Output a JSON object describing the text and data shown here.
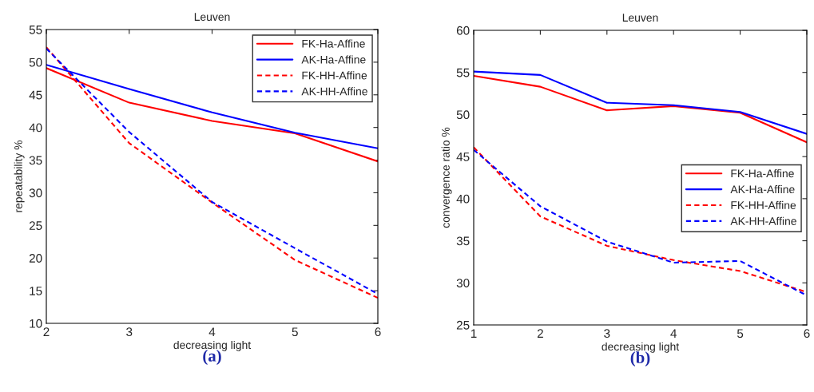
{
  "chart_data": [
    {
      "type": "line",
      "title": "Leuven",
      "xlabel": "decreasing light",
      "ylabel": "repeatability %",
      "annotations": [
        "(a)"
      ],
      "x": [
        2,
        3,
        4,
        5,
        6
      ],
      "xlim": [
        2,
        6
      ],
      "xticks": [
        2,
        3,
        4,
        5,
        6
      ],
      "ylim": [
        10,
        55
      ],
      "yticks": [
        10,
        15,
        20,
        25,
        30,
        35,
        40,
        45,
        50,
        55
      ],
      "grid": false,
      "legend": "top right",
      "marker": "none",
      "series": [
        {
          "name": "FK-Ha-Affine",
          "color": "#ff0000",
          "line_style": "solid",
          "values": [
            49.1,
            43.8,
            41.0,
            39.1,
            34.8
          ]
        },
        {
          "name": "AK-Ha-Affine",
          "color": "#0000ff",
          "line_style": "solid",
          "values": [
            49.6,
            45.9,
            42.3,
            39.2,
            36.8
          ]
        },
        {
          "name": "FK-HH-Affine",
          "color": "#ff0000",
          "line_style": "dashed",
          "values": [
            52.3,
            37.6,
            28.5,
            19.7,
            13.9
          ]
        },
        {
          "name": "AK-HH-Affine",
          "color": "#0000ff",
          "line_style": "dashed",
          "values": [
            52.1,
            39.3,
            28.6,
            21.5,
            14.5
          ]
        }
      ]
    },
    {
      "type": "line",
      "title": "Leuven",
      "xlabel": "decreasing light",
      "ylabel": "convergence ratio %",
      "annotations": [
        "(b)"
      ],
      "x": [
        1,
        2,
        3,
        4,
        5,
        6
      ],
      "xlim": [
        1,
        6
      ],
      "xticks": [
        1,
        2,
        3,
        4,
        5,
        6
      ],
      "ylim": [
        25,
        60
      ],
      "yticks": [
        25,
        30,
        35,
        40,
        45,
        50,
        55,
        60
      ],
      "grid": false,
      "legend": "right",
      "marker": "none",
      "series": [
        {
          "name": "FK-Ha-Affine",
          "color": "#ff0000",
          "line_style": "solid",
          "values": [
            54.6,
            53.3,
            50.5,
            51.0,
            50.2,
            46.7
          ]
        },
        {
          "name": "AK-Ha-Affine",
          "color": "#0000ff",
          "line_style": "solid",
          "values": [
            55.1,
            54.7,
            51.4,
            51.1,
            50.3,
            47.7
          ]
        },
        {
          "name": "FK-HH-Affine",
          "color": "#ff0000",
          "line_style": "dashed",
          "values": [
            46.1,
            37.9,
            34.4,
            32.7,
            31.4,
            28.9
          ]
        },
        {
          "name": "AK-HH-Affine",
          "color": "#0000ff",
          "line_style": "dashed",
          "values": [
            45.8,
            39.1,
            34.9,
            32.4,
            32.6,
            28.5
          ]
        }
      ]
    }
  ]
}
